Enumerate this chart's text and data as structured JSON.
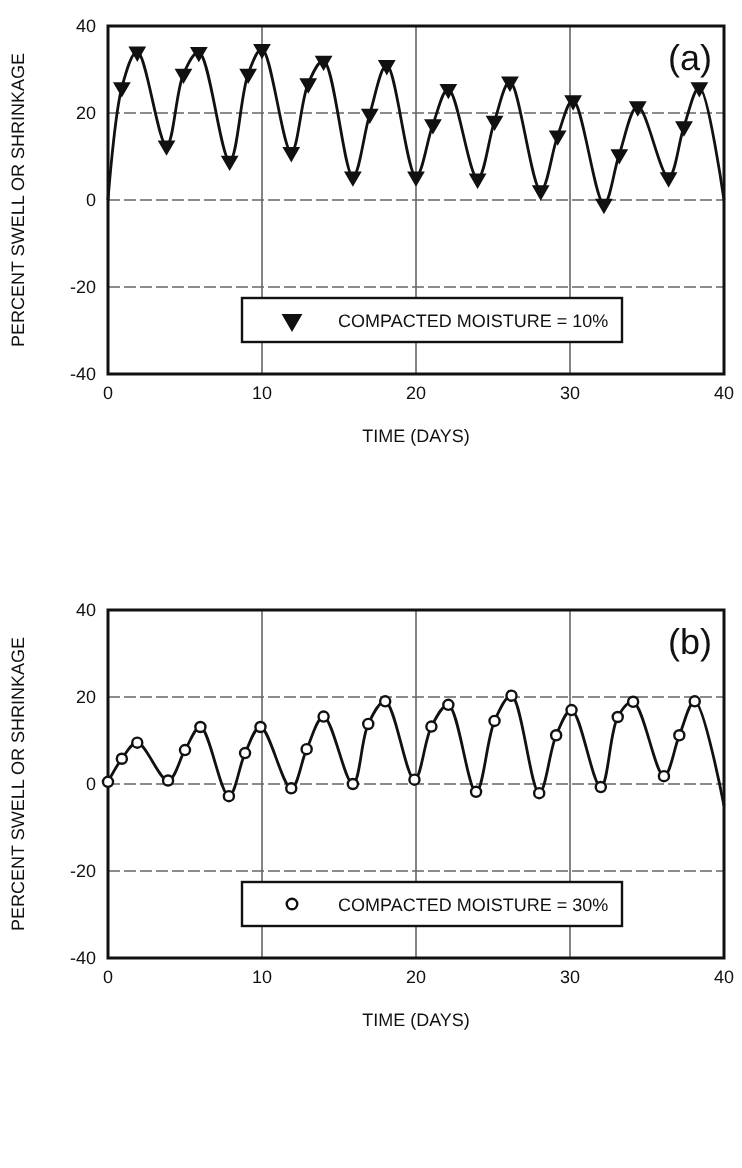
{
  "chart_data": [
    {
      "type": "line",
      "xlabel": "TIME (DAYS)",
      "ylabel": "PERCENT SWELL OR SHRINKAGE",
      "annotations": [
        "(a)"
      ],
      "xlim": [
        0,
        40
      ],
      "xticks": [
        0,
        10,
        20,
        30,
        40
      ],
      "ylim": [
        -40,
        40
      ],
      "yticks": [
        -40,
        -20,
        0,
        20,
        40
      ],
      "grid": true,
      "legend": "bottom",
      "series": [
        {
          "marker": "none",
          "color": "#111111",
          "x": [
            0,
            0.9,
            1.9,
            3.8,
            4.9,
            5.9,
            7.9,
            9.1,
            10,
            11.9,
            13,
            14,
            15.9,
            17,
            18.1,
            20,
            21.1,
            22.1,
            24,
            25.1,
            26.1,
            28.1,
            29.2,
            30.2,
            32.2,
            33.2,
            34.4,
            36.4,
            37.4,
            38.4,
            40
          ],
          "values": [
            0,
            25.9,
            34.1,
            12.5,
            29,
            34,
            9,
            29,
            34.7,
            11,
            26.8,
            32,
            5.4,
            19.8,
            31,
            5.4,
            17.4,
            25.5,
            4.9,
            18.2,
            27.2,
            2.2,
            14.8,
            22.9,
            -0.9,
            10.5,
            21.5,
            5.2,
            16.9,
            25.9,
            0
          ]
        },
        {
          "type": "scatter",
          "name": "COMPACTED MOISTURE = 10%",
          "marker": "triangle",
          "color": "#111111",
          "x": [
            0.9,
            1.9,
            3.8,
            4.9,
            5.9,
            7.9,
            9.1,
            10,
            11.9,
            13,
            14,
            15.9,
            17,
            18.1,
            20,
            21.1,
            22.1,
            24,
            25.1,
            26.1,
            28.1,
            29.2,
            30.2,
            32.2,
            33.2,
            34.4,
            36.4,
            37.4,
            38.4
          ],
          "values": [
            25.9,
            34.1,
            12.5,
            29,
            34,
            9,
            29,
            34.7,
            11,
            26.8,
            32,
            5.4,
            19.8,
            31,
            5.4,
            17.4,
            25.5,
            4.9,
            18.2,
            27.2,
            2.2,
            14.8,
            22.9,
            -0.9,
            10.5,
            21.5,
            5.2,
            16.9,
            25.9
          ]
        }
      ]
    },
    {
      "type": "line",
      "xlabel": "TIME (DAYS)",
      "ylabel": "PERCENT SWELL OR SHRINKAGE",
      "annotations": [
        "(b)"
      ],
      "xlim": [
        0,
        40
      ],
      "xticks": [
        0,
        10,
        20,
        30,
        40
      ],
      "ylim": [
        -40,
        40
      ],
      "yticks": [
        -40,
        -20,
        0,
        20,
        40
      ],
      "grid": true,
      "legend": "bottom",
      "series": [
        {
          "marker": "none",
          "color": "#111111",
          "x": [
            0,
            0.9,
            1.9,
            3.9,
            5,
            6,
            7.85,
            8.9,
            9.9,
            11.9,
            12.9,
            14,
            15.9,
            16.9,
            18,
            19.9,
            21,
            22.1,
            23.9,
            25.1,
            26.2,
            28,
            29.1,
            30.1,
            32,
            33.1,
            34.1,
            36.1,
            37.1,
            38.1,
            40
          ],
          "values": [
            0.5,
            5.8,
            9.5,
            0.8,
            7.8,
            13.1,
            -2.8,
            7.1,
            13.1,
            -1,
            8,
            15.5,
            0,
            13.8,
            19,
            1,
            13.2,
            18.2,
            -1.8,
            14.5,
            20.3,
            -2.1,
            11.2,
            17,
            -0.7,
            15.4,
            18.9,
            1.8,
            11.2,
            19,
            -5
          ]
        },
        {
          "type": "scatter",
          "name": "COMPACTED MOISTURE = 30%",
          "marker": "circle",
          "color": "#111111",
          "x": [
            0,
            0.9,
            1.9,
            3.9,
            5,
            6,
            7.85,
            8.9,
            9.9,
            11.9,
            12.9,
            14,
            15.9,
            16.9,
            18,
            19.9,
            21,
            22.1,
            23.9,
            25.1,
            26.2,
            28,
            29.1,
            30.1,
            32,
            33.1,
            34.1,
            36.1,
            37.1,
            38.1
          ],
          "values": [
            0.5,
            5.8,
            9.5,
            0.8,
            7.8,
            13.1,
            -2.8,
            7.1,
            13.1,
            -1,
            8,
            15.5,
            0,
            13.8,
            19,
            1,
            13.2,
            18.2,
            -1.8,
            14.5,
            20.3,
            -2.1,
            11.2,
            17,
            -0.7,
            15.4,
            18.9,
            1.8,
            11.2,
            19
          ]
        }
      ]
    }
  ]
}
